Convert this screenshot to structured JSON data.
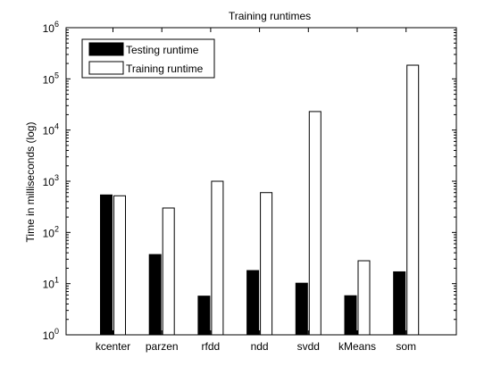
{
  "chart_data": {
    "type": "bar",
    "title": "Training runtimes",
    "xlabel": "",
    "ylabel": "Time in milliseconds (log)",
    "yscale": "log",
    "ylim": [
      1,
      1000000
    ],
    "y_ticks": [
      {
        "base": "10",
        "exp": "0"
      },
      {
        "base": "10",
        "exp": "1"
      },
      {
        "base": "10",
        "exp": "2"
      },
      {
        "base": "10",
        "exp": "3"
      },
      {
        "base": "10",
        "exp": "4"
      },
      {
        "base": "10",
        "exp": "5"
      },
      {
        "base": "10",
        "exp": "6"
      }
    ],
    "categories": [
      "kcenter",
      "parzen",
      "rfdd",
      "ndd",
      "svdd",
      "kMeans",
      "som"
    ],
    "series": [
      {
        "name": "Testing runtime",
        "color": "#000000",
        "values": [
          540,
          37,
          5.7,
          18,
          10.2,
          5.8,
          17
        ]
      },
      {
        "name": "Training runtime",
        "color": "#ffffff",
        "values": [
          520,
          300,
          1000,
          600,
          23000,
          28,
          185000
        ]
      }
    ],
    "grid": false,
    "legend_position": "top-left"
  }
}
